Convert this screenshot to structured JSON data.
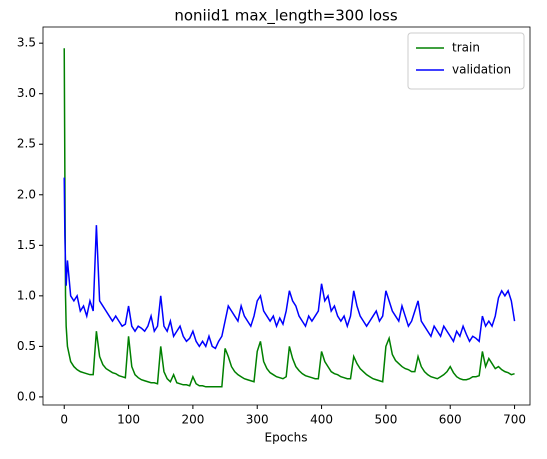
{
  "chart_data": {
    "type": "line",
    "title": "noniid1 max_length=300 loss",
    "xlabel": "Epochs",
    "x": [
      0,
      1,
      2,
      3,
      5,
      10,
      15,
      20,
      25,
      30,
      35,
      40,
      45,
      50,
      55,
      60,
      65,
      70,
      75,
      80,
      85,
      90,
      95,
      100,
      105,
      110,
      115,
      120,
      125,
      130,
      135,
      140,
      145,
      150,
      155,
      160,
      165,
      170,
      175,
      180,
      185,
      190,
      195,
      200,
      205,
      210,
      215,
      220,
      225,
      230,
      235,
      240,
      245,
      250,
      255,
      260,
      265,
      270,
      275,
      280,
      285,
      290,
      295,
      300,
      305,
      310,
      315,
      320,
      325,
      330,
      335,
      340,
      345,
      350,
      355,
      360,
      365,
      370,
      375,
      380,
      385,
      390,
      395,
      400,
      405,
      410,
      415,
      420,
      425,
      430,
      435,
      440,
      445,
      450,
      455,
      460,
      465,
      470,
      475,
      480,
      485,
      490,
      495,
      500,
      505,
      510,
      515,
      520,
      525,
      530,
      535,
      540,
      545,
      550,
      555,
      560,
      565,
      570,
      575,
      580,
      585,
      590,
      595,
      600,
      605,
      610,
      615,
      620,
      625,
      630,
      635,
      640,
      645,
      650,
      655,
      660,
      665,
      670,
      675,
      680,
      685,
      690,
      695,
      700
    ],
    "series": [
      {
        "name": "train",
        "color": "#008000",
        "values": [
          3.45,
          2.2,
          1.0,
          0.7,
          0.5,
          0.35,
          0.3,
          0.27,
          0.25,
          0.24,
          0.23,
          0.22,
          0.22,
          0.65,
          0.4,
          0.32,
          0.28,
          0.26,
          0.24,
          0.23,
          0.21,
          0.2,
          0.19,
          0.6,
          0.3,
          0.22,
          0.19,
          0.17,
          0.16,
          0.15,
          0.14,
          0.14,
          0.13,
          0.5,
          0.25,
          0.18,
          0.15,
          0.22,
          0.14,
          0.13,
          0.12,
          0.12,
          0.11,
          0.2,
          0.13,
          0.11,
          0.11,
          0.1,
          0.1,
          0.1,
          0.1,
          0.1,
          0.1,
          0.48,
          0.4,
          0.3,
          0.25,
          0.22,
          0.2,
          0.18,
          0.17,
          0.16,
          0.15,
          0.45,
          0.55,
          0.35,
          0.28,
          0.24,
          0.22,
          0.2,
          0.19,
          0.18,
          0.2,
          0.5,
          0.38,
          0.3,
          0.26,
          0.23,
          0.21,
          0.2,
          0.19,
          0.18,
          0.18,
          0.45,
          0.35,
          0.3,
          0.25,
          0.23,
          0.22,
          0.2,
          0.19,
          0.18,
          0.18,
          0.4,
          0.33,
          0.28,
          0.25,
          0.22,
          0.2,
          0.18,
          0.17,
          0.16,
          0.15,
          0.5,
          0.58,
          0.42,
          0.36,
          0.33,
          0.3,
          0.28,
          0.27,
          0.25,
          0.25,
          0.4,
          0.3,
          0.25,
          0.22,
          0.2,
          0.19,
          0.18,
          0.2,
          0.22,
          0.25,
          0.3,
          0.24,
          0.2,
          0.18,
          0.17,
          0.17,
          0.18,
          0.2,
          0.2,
          0.21,
          0.45,
          0.3,
          0.38,
          0.33,
          0.28,
          0.3,
          0.27,
          0.25,
          0.24,
          0.22,
          0.23
        ]
      },
      {
        "name": "validation",
        "color": "#0000ff",
        "values": [
          2.17,
          1.6,
          1.3,
          1.1,
          1.35,
          1.0,
          0.95,
          1.0,
          0.85,
          0.9,
          0.8,
          0.95,
          0.85,
          1.7,
          0.95,
          0.9,
          0.85,
          0.8,
          0.75,
          0.8,
          0.75,
          0.7,
          0.72,
          0.9,
          0.7,
          0.65,
          0.7,
          0.68,
          0.65,
          0.7,
          0.8,
          0.65,
          0.7,
          1.0,
          0.7,
          0.65,
          0.75,
          0.6,
          0.65,
          0.7,
          0.6,
          0.55,
          0.58,
          0.65,
          0.55,
          0.5,
          0.55,
          0.5,
          0.6,
          0.5,
          0.48,
          0.55,
          0.6,
          0.75,
          0.9,
          0.85,
          0.8,
          0.75,
          0.9,
          0.8,
          0.75,
          0.7,
          0.8,
          0.95,
          1.0,
          0.85,
          0.8,
          0.75,
          0.8,
          0.7,
          0.78,
          0.72,
          0.85,
          1.05,
          0.95,
          0.9,
          0.8,
          0.75,
          0.7,
          0.8,
          0.75,
          0.8,
          0.85,
          1.12,
          0.95,
          1.0,
          0.85,
          0.9,
          0.8,
          0.75,
          0.8,
          0.7,
          0.8,
          1.05,
          0.9,
          0.8,
          0.75,
          0.7,
          0.75,
          0.8,
          0.85,
          0.75,
          0.8,
          1.05,
          0.95,
          0.85,
          0.8,
          0.75,
          0.9,
          0.8,
          0.7,
          0.75,
          0.85,
          0.95,
          0.75,
          0.7,
          0.65,
          0.6,
          0.7,
          0.65,
          0.6,
          0.7,
          0.65,
          0.6,
          0.55,
          0.65,
          0.6,
          0.7,
          0.62,
          0.55,
          0.6,
          0.58,
          0.55,
          0.8,
          0.7,
          0.75,
          0.7,
          0.8,
          0.98,
          1.05,
          1.0,
          1.05,
          0.95,
          0.75
        ]
      }
    ],
    "xlim": [
      -33,
      724
    ],
    "xticks": [
      0,
      100,
      200,
      300,
      400,
      500,
      600,
      700
    ],
    "ylim": [
      -0.08,
      3.66
    ],
    "yticks": [
      {
        "value": 0,
        "label": "0.0"
      },
      0.5,
      {
        "value": 1,
        "label": "1.0"
      },
      1.5,
      {
        "value": 2,
        "label": "2.0"
      },
      2.5,
      {
        "value": 3,
        "label": "3.0"
      },
      3.5
    ],
    "legend": "upper right"
  }
}
